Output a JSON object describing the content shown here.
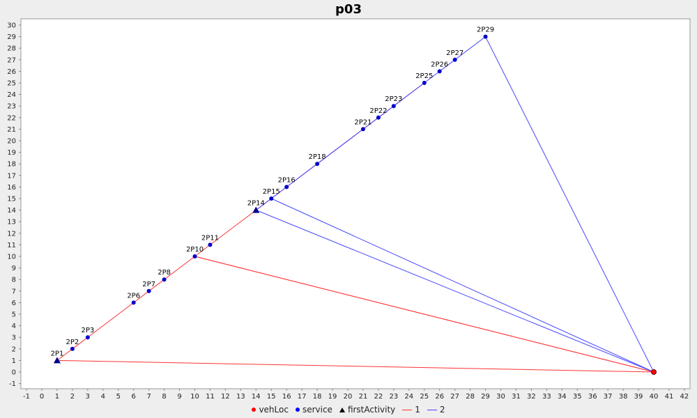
{
  "chart_data": {
    "type": "scatter",
    "title": "p03",
    "xlim": [
      -1,
      42
    ],
    "ylim": [
      -1,
      30
    ],
    "grid": false,
    "legend_position": "bottom",
    "x_ticks": [
      -1,
      0,
      1,
      2,
      3,
      4,
      5,
      6,
      7,
      8,
      9,
      10,
      11,
      12,
      13,
      14,
      15,
      16,
      17,
      18,
      19,
      20,
      21,
      22,
      23,
      24,
      25,
      26,
      27,
      28,
      29,
      30,
      31,
      32,
      33,
      34,
      35,
      36,
      37,
      38,
      39,
      40,
      41,
      42
    ],
    "y_ticks": [
      -1,
      0,
      1,
      2,
      3,
      4,
      5,
      6,
      7,
      8,
      9,
      10,
      11,
      12,
      13,
      14,
      15,
      16,
      17,
      18,
      19,
      20,
      21,
      22,
      23,
      24,
      25,
      26,
      27,
      28,
      29,
      30
    ],
    "vehicle_location": {
      "x": 40,
      "y": 0
    },
    "points": [
      {
        "label": "2P1",
        "x": 1,
        "y": 1,
        "kind": "firstActivity"
      },
      {
        "label": "2P2",
        "x": 2,
        "y": 2,
        "kind": "service"
      },
      {
        "label": "2P3",
        "x": 3,
        "y": 3,
        "kind": "service"
      },
      {
        "label": "2P6",
        "x": 6,
        "y": 6,
        "kind": "service"
      },
      {
        "label": "2P7",
        "x": 7,
        "y": 7,
        "kind": "service"
      },
      {
        "label": "2P8",
        "x": 8,
        "y": 8,
        "kind": "service"
      },
      {
        "label": "2P10",
        "x": 10,
        "y": 10,
        "kind": "service"
      },
      {
        "label": "2P11",
        "x": 11,
        "y": 11,
        "kind": "service"
      },
      {
        "label": "2P14",
        "x": 14,
        "y": 14,
        "kind": "firstActivity"
      },
      {
        "label": "2P15",
        "x": 15,
        "y": 15,
        "kind": "service"
      },
      {
        "label": "2P16",
        "x": 16,
        "y": 16,
        "kind": "service"
      },
      {
        "label": "2P18",
        "x": 18,
        "y": 18,
        "kind": "service"
      },
      {
        "label": "2P21",
        "x": 21,
        "y": 21,
        "kind": "service"
      },
      {
        "label": "2P22",
        "x": 22,
        "y": 22,
        "kind": "service"
      },
      {
        "label": "2P23",
        "x": 23,
        "y": 23,
        "kind": "service"
      },
      {
        "label": "2P25",
        "x": 25,
        "y": 25,
        "kind": "service"
      },
      {
        "label": "2P26",
        "x": 26,
        "y": 26,
        "kind": "service"
      },
      {
        "label": "2P27",
        "x": 27,
        "y": 27,
        "kind": "service"
      },
      {
        "label": "2P29",
        "x": 29,
        "y": 29,
        "kind": "service"
      }
    ],
    "routes": [
      {
        "name": "1",
        "color": "#ff3333",
        "path": [
          [
            40,
            0
          ],
          [
            1,
            1
          ],
          [
            2,
            2
          ],
          [
            3,
            3
          ],
          [
            6,
            6
          ],
          [
            7,
            7
          ],
          [
            8,
            8
          ],
          [
            10,
            10
          ],
          [
            40,
            0
          ]
        ]
      },
      {
        "name": "1",
        "color": "#ff3333",
        "path": [
          [
            40,
            0
          ],
          [
            10,
            10
          ],
          [
            11,
            11
          ],
          [
            14,
            14
          ],
          [
            15,
            15
          ],
          [
            16,
            16
          ],
          [
            18,
            18
          ],
          [
            21,
            21
          ],
          [
            22,
            22
          ],
          [
            23,
            23
          ],
          [
            25,
            25
          ]
        ]
      },
      {
        "name": "2",
        "color": "#4444ff",
        "path": [
          [
            40,
            0
          ],
          [
            14,
            14
          ],
          [
            15,
            15
          ],
          [
            16,
            16
          ],
          [
            18,
            18
          ],
          [
            21,
            21
          ],
          [
            22,
            22
          ],
          [
            23,
            23
          ],
          [
            25,
            25
          ],
          [
            26,
            26
          ],
          [
            27,
            27
          ],
          [
            29,
            29
          ],
          [
            40,
            0
          ]
        ]
      },
      {
        "name": "2",
        "color": "#4444ff",
        "path": [
          [
            40,
            0
          ],
          [
            15,
            15
          ]
        ]
      }
    ],
    "legend": [
      {
        "label": "vehLoc",
        "symbol": "dot",
        "color": "#ff0000"
      },
      {
        "label": "service",
        "symbol": "dot",
        "color": "#0000ff"
      },
      {
        "label": "firstActivity",
        "symbol": "triangle",
        "color": "#000000"
      },
      {
        "label": "1",
        "symbol": "line",
        "color": "#ff3333"
      },
      {
        "label": "2",
        "symbol": "line",
        "color": "#4444ff"
      }
    ],
    "colors": {
      "service": "#0000cc",
      "firstActivity": "#00008b",
      "vehLoc": "#ff0000",
      "axis": "#888888",
      "background": "#ffffff"
    }
  }
}
